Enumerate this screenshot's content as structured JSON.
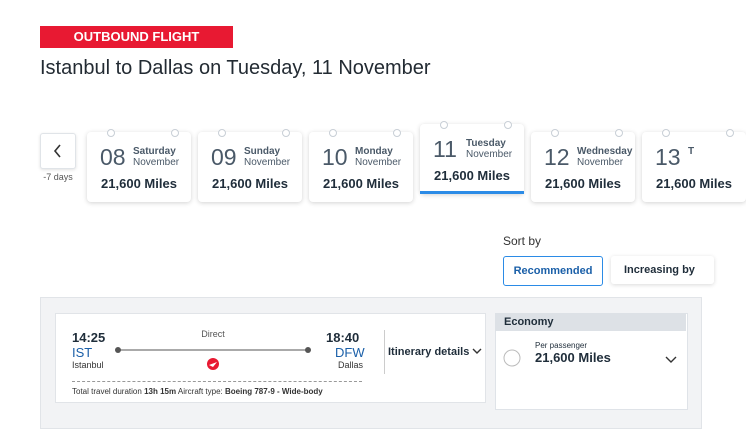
{
  "header": {
    "badge": "OUTBOUND FLIGHT",
    "title": "Istanbul to Dallas on Tuesday, 11 November"
  },
  "date_nav": {
    "prev_label": "-7 days",
    "dates": [
      {
        "day": "08",
        "weekday": "Saturday",
        "month": "November",
        "price": "21,600 Miles",
        "selected": false
      },
      {
        "day": "09",
        "weekday": "Sunday",
        "month": "November",
        "price": "21,600 Miles",
        "selected": false
      },
      {
        "day": "10",
        "weekday": "Monday",
        "month": "November",
        "price": "21,600 Miles",
        "selected": false
      },
      {
        "day": "11",
        "weekday": "Tuesday",
        "month": "November",
        "price": "21,600 Miles",
        "selected": true
      },
      {
        "day": "12",
        "weekday": "Wednesday",
        "month": "November",
        "price": "21,600 Miles",
        "selected": false
      },
      {
        "day": "13",
        "weekday": "T",
        "month": "",
        "price": "21,600 Miles",
        "selected": false
      }
    ]
  },
  "sort": {
    "label": "Sort by",
    "options": [
      "Recommended",
      "Increasing by"
    ]
  },
  "flight": {
    "departure_time": "14:25",
    "departure_code": "IST",
    "departure_city": "Istanbul",
    "stop": "Direct",
    "arrival_time": "18:40",
    "arrival_code": "DFW",
    "arrival_city": "Dallas",
    "details": "Itinerary details",
    "duration_label": "Total travel duration",
    "duration": "13h 15m",
    "aircraft_label": "Aircraft type:",
    "aircraft": "Boeing 787-9 - Wide-body"
  },
  "fare": {
    "cabin": "Economy",
    "per": "Per passenger",
    "price": "21,600 Miles"
  }
}
